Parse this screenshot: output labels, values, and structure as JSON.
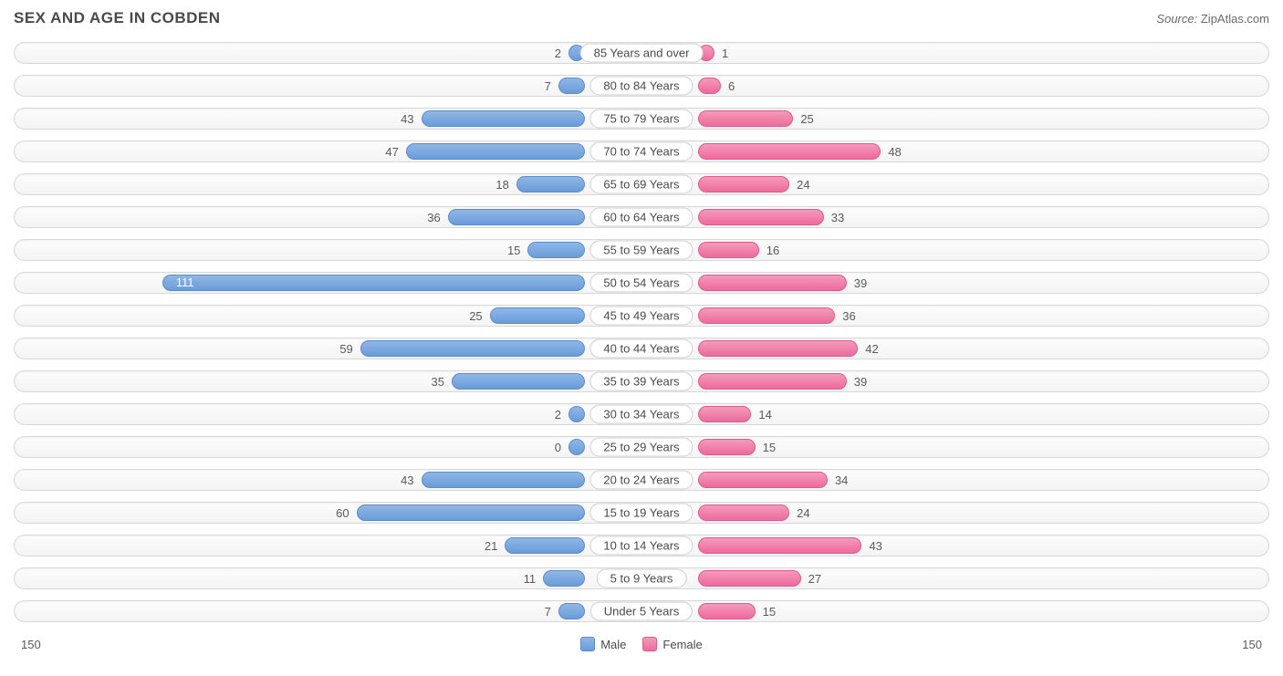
{
  "title": "SEX AND AGE IN COBDEN",
  "source_label": "Source:",
  "source_value": "ZipAtlas.com",
  "chart": {
    "type": "population-pyramid",
    "male_color": "#6a9cd9",
    "female_color": "#ed6b9a",
    "bar_bg_color": "#f4f4f4",
    "bar_border_color": "#d8d8d8",
    "text_color": "#5a5a5a",
    "label_bg": "#ffffff",
    "axis_max": 150,
    "inside_threshold": 100,
    "categories": [
      {
        "label": "85 Years and over",
        "male": 2,
        "female": 1
      },
      {
        "label": "80 to 84 Years",
        "male": 7,
        "female": 6
      },
      {
        "label": "75 to 79 Years",
        "male": 43,
        "female": 25
      },
      {
        "label": "70 to 74 Years",
        "male": 47,
        "female": 48
      },
      {
        "label": "65 to 69 Years",
        "male": 18,
        "female": 24
      },
      {
        "label": "60 to 64 Years",
        "male": 36,
        "female": 33
      },
      {
        "label": "55 to 59 Years",
        "male": 15,
        "female": 16
      },
      {
        "label": "50 to 54 Years",
        "male": 111,
        "female": 39
      },
      {
        "label": "45 to 49 Years",
        "male": 25,
        "female": 36
      },
      {
        "label": "40 to 44 Years",
        "male": 59,
        "female": 42
      },
      {
        "label": "35 to 39 Years",
        "male": 35,
        "female": 39
      },
      {
        "label": "30 to 34 Years",
        "male": 2,
        "female": 14
      },
      {
        "label": "25 to 29 Years",
        "male": 0,
        "female": 15
      },
      {
        "label": "20 to 24 Years",
        "male": 43,
        "female": 34
      },
      {
        "label": "15 to 19 Years",
        "male": 60,
        "female": 24
      },
      {
        "label": "10 to 14 Years",
        "male": 21,
        "female": 43
      },
      {
        "label": "5 to 9 Years",
        "male": 11,
        "female": 27
      },
      {
        "label": "Under 5 Years",
        "male": 7,
        "female": 15
      }
    ],
    "legend": {
      "male": "Male",
      "female": "Female"
    }
  }
}
